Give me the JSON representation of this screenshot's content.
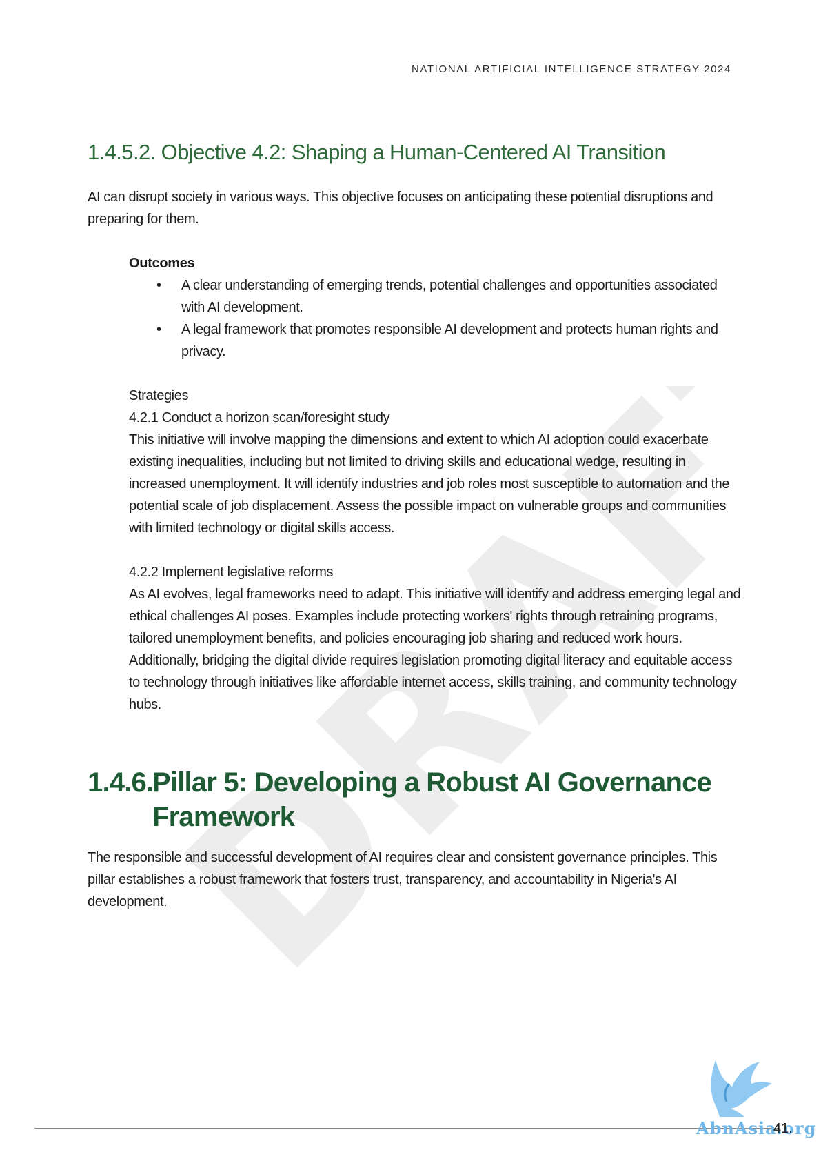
{
  "header": {
    "running_title": "NATIONAL ARTIFICIAL INTELLIGENCE STRATEGY 2024"
  },
  "watermark": {
    "text": "DRAFT"
  },
  "section_1452": {
    "heading": "1.4.5.2. Objective 4.2: Shaping a Human-Centered AI Transition",
    "intro": "AI can disrupt society in various ways. This objective focuses on anticipating these potential disruptions and preparing for them.",
    "outcomes_title": "Outcomes",
    "outcomes": [
      "A clear understanding of emerging trends, potential challenges and opportunities associated with AI development.",
      "A legal framework that promotes responsible AI development and protects human rights and privacy."
    ],
    "strategies_title": "Strategies",
    "strategy_421_title": "4.2.1 Conduct a horizon scan/foresight study",
    "strategy_421_body": "This initiative will involve mapping the dimensions and extent to which AI adoption could exacerbate existing inequalities, including but not limited to driving skills and educational wedge, resulting in increased unemployment. It will identify industries and job roles most susceptible to automation and the potential scale of job displacement. Assess the possible impact on vulnerable groups and communities with limited technology or digital skills access.",
    "strategy_422_title": "4.2.2 Implement legislative reforms",
    "strategy_422_body": "As AI evolves, legal frameworks need to adapt. This initiative will identify and address emerging legal and ethical challenges AI poses. Examples include protecting workers' rights through retraining programs, tailored unemployment benefits, and policies encouraging job sharing and reduced work hours. Additionally, bridging the digital divide requires legislation promoting digital literacy and equitable access to technology through initiatives like affordable internet access, skills training, and community technology hubs."
  },
  "section_146": {
    "heading_number": "1.4.6.",
    "heading_line1": "Pillar 5: Developing a Robust AI Governance",
    "heading_line2": "Framework",
    "intro": "The responsible and successful development of AI requires clear and consistent governance principles. This pillar establishes a robust framework that fosters trust, transparency, and accountability in Nigeria's AI development."
  },
  "footer": {
    "page_number": "41.",
    "logo_text": "AbnAsia.org",
    "logo_icon": "winged-bird-icon"
  },
  "colors": {
    "subheading_green": "#2f6b3a",
    "heading_green": "#1e5a34",
    "watermark_grey": "#ededed",
    "logo_blue": "#6fb7e8"
  }
}
